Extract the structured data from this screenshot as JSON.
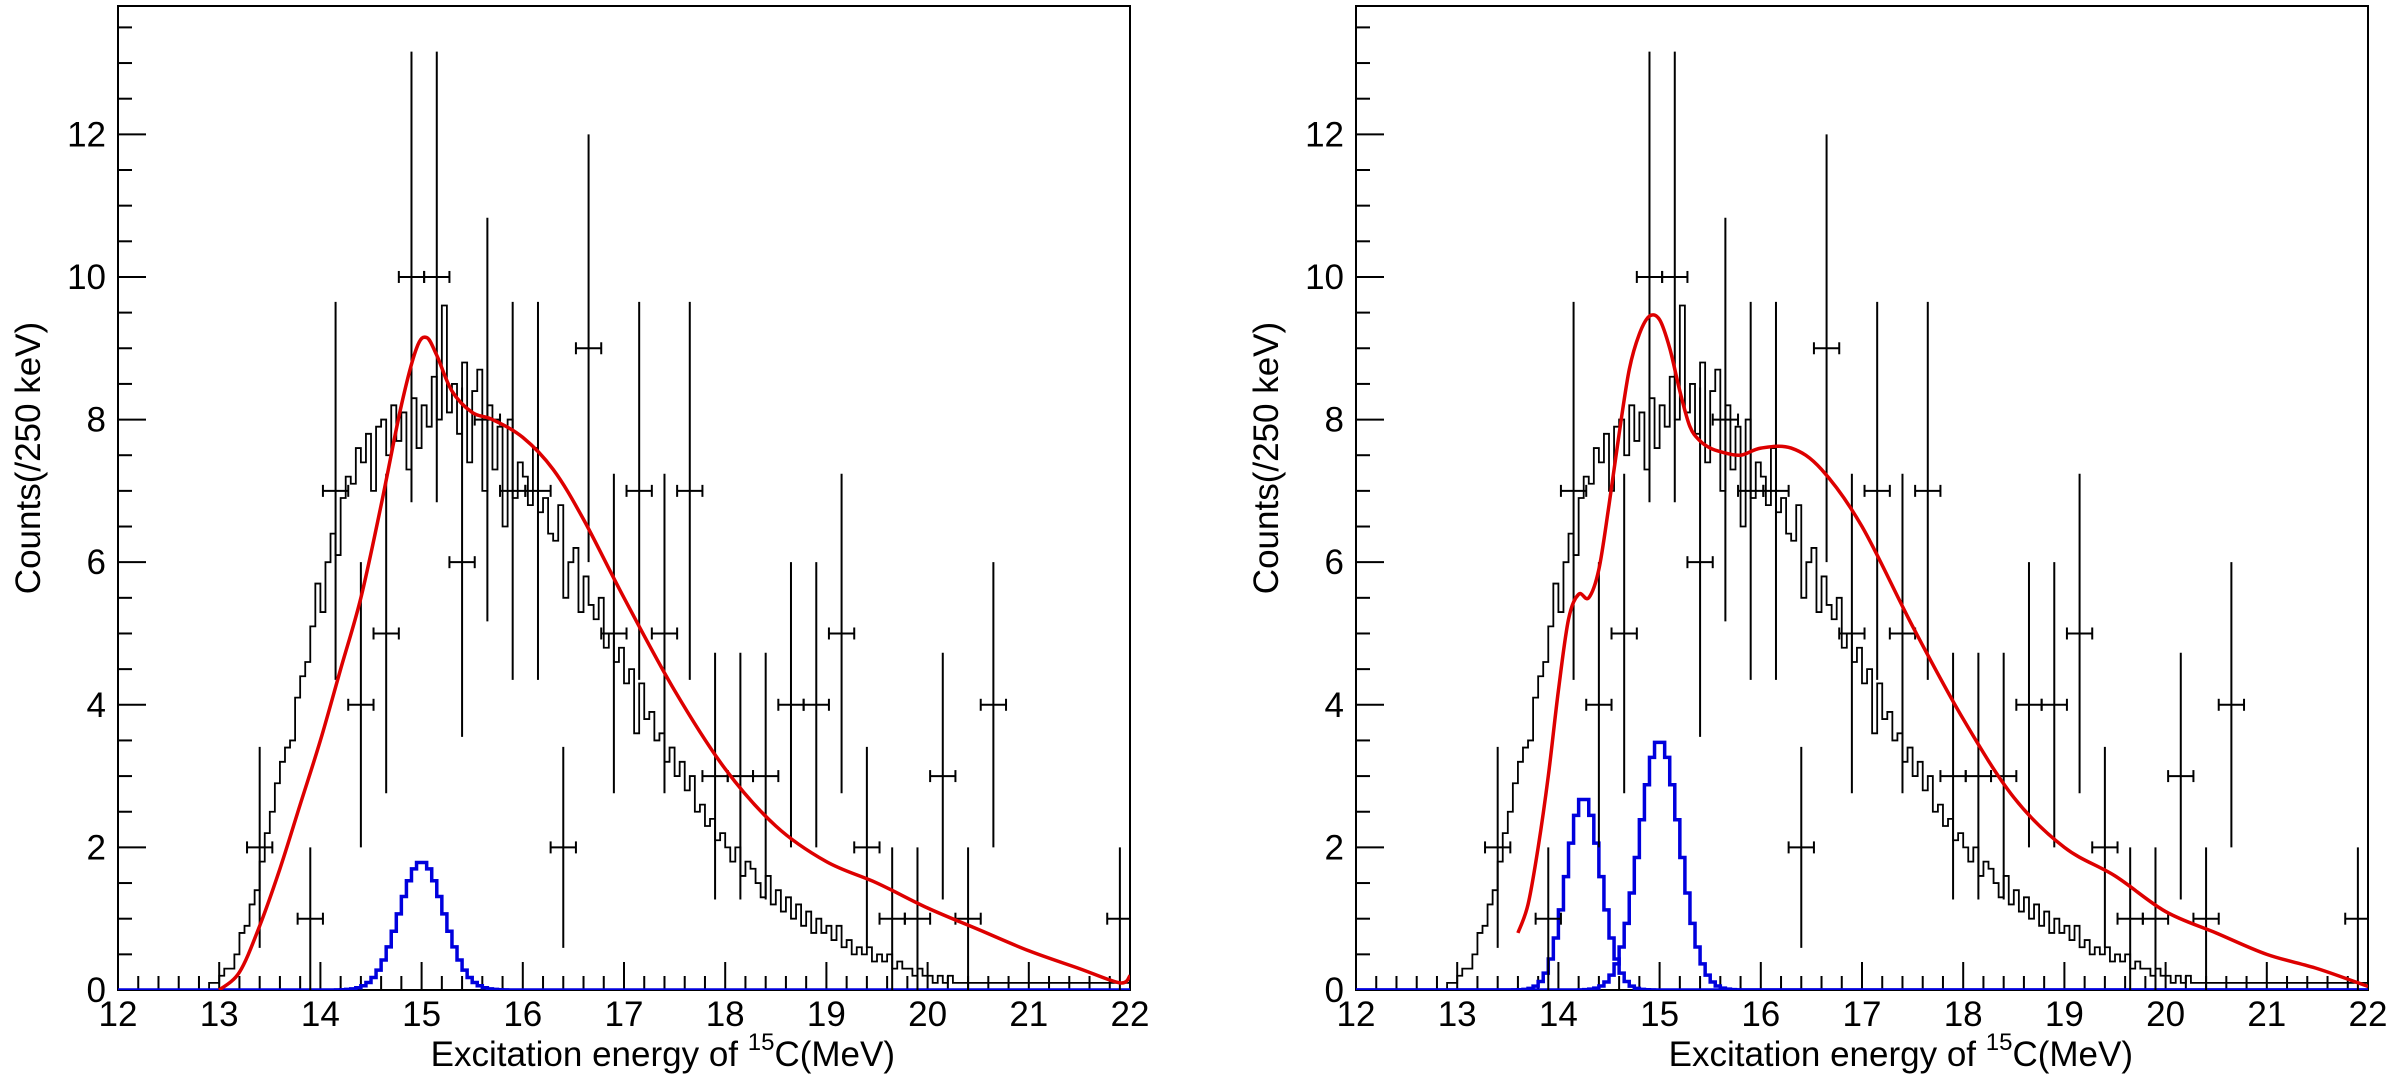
{
  "chart_data": [
    {
      "type": "histogram",
      "panel": "left",
      "xlabel_prefix": "Excitation energy of ",
      "xlabel_sup": "15",
      "xlabel_suffix": "C(MeV)",
      "ylabel": "Counts(/250 keV)",
      "xlim": [
        12,
        22
      ],
      "ylim": [
        0,
        13.8
      ],
      "xticks": [
        "12",
        "13",
        "14",
        "15",
        "16",
        "17",
        "18",
        "19",
        "20",
        "21",
        "22"
      ],
      "yticks": [
        "0",
        "2",
        "4",
        "6",
        "8",
        "10",
        "12"
      ],
      "colors": {
        "data": "#000000",
        "total_fit": "#dd0000",
        "component": "#0000dd"
      },
      "data_points": [
        {
          "x": 13.4,
          "y": 2,
          "err": 1.41
        },
        {
          "x": 13.9,
          "y": 1,
          "err": 1.0
        },
        {
          "x": 14.15,
          "y": 7,
          "err": 2.65
        },
        {
          "x": 14.4,
          "y": 4,
          "err": 2.0
        },
        {
          "x": 14.65,
          "y": 5,
          "err": 2.24
        },
        {
          "x": 14.9,
          "y": 10,
          "err": 3.16
        },
        {
          "x": 15.15,
          "y": 10,
          "err": 3.16
        },
        {
          "x": 15.4,
          "y": 6,
          "err": 2.45
        },
        {
          "x": 15.65,
          "y": 8,
          "err": 2.83
        },
        {
          "x": 15.9,
          "y": 7,
          "err": 2.65
        },
        {
          "x": 16.15,
          "y": 7,
          "err": 2.65
        },
        {
          "x": 16.4,
          "y": 2,
          "err": 1.41
        },
        {
          "x": 16.65,
          "y": 9,
          "err": 3.0
        },
        {
          "x": 16.9,
          "y": 5,
          "err": 2.24
        },
        {
          "x": 17.15,
          "y": 7,
          "err": 2.65
        },
        {
          "x": 17.4,
          "y": 5,
          "err": 2.24
        },
        {
          "x": 17.65,
          "y": 7,
          "err": 2.65
        },
        {
          "x": 17.9,
          "y": 3,
          "err": 1.73
        },
        {
          "x": 18.15,
          "y": 3,
          "err": 1.73
        },
        {
          "x": 18.4,
          "y": 3,
          "err": 1.73
        },
        {
          "x": 18.65,
          "y": 4,
          "err": 2.0
        },
        {
          "x": 18.9,
          "y": 4,
          "err": 2.0
        },
        {
          "x": 19.15,
          "y": 5,
          "err": 2.24
        },
        {
          "x": 19.4,
          "y": 2,
          "err": 1.41
        },
        {
          "x": 19.65,
          "y": 1,
          "err": 1.0
        },
        {
          "x": 19.9,
          "y": 1,
          "err": 1.0
        },
        {
          "x": 20.15,
          "y": 3,
          "err": 1.73
        },
        {
          "x": 20.4,
          "y": 1,
          "err": 1.0
        },
        {
          "x": 20.65,
          "y": 4,
          "err": 2.0
        },
        {
          "x": 21.9,
          "y": 1,
          "err": 1.0
        }
      ],
      "total_fit": {
        "x": [
          13.0,
          13.2,
          13.4,
          13.6,
          13.8,
          14.0,
          14.2,
          14.4,
          14.6,
          14.8,
          14.95,
          15.05,
          15.15,
          15.3,
          15.5,
          15.7,
          16.0,
          16.3,
          16.6,
          17.0,
          17.5,
          18.0,
          18.5,
          19.0,
          19.5,
          20.0,
          20.5,
          21.0,
          21.5,
          21.9,
          22.0
        ],
        "y": [
          0.0,
          0.25,
          0.9,
          1.7,
          2.6,
          3.5,
          4.5,
          5.5,
          6.8,
          8.2,
          9.0,
          9.15,
          8.9,
          8.4,
          8.1,
          8.0,
          7.75,
          7.3,
          6.6,
          5.5,
          4.2,
          3.1,
          2.3,
          1.8,
          1.5,
          1.15,
          0.85,
          0.55,
          0.3,
          0.1,
          0.2
        ]
      },
      "components": [
        {
          "center": 15.0,
          "amplitude": 1.8,
          "sigma": 0.22
        }
      ],
      "histogram": {
        "bin_start": 12.8,
        "bin_width": 0.05,
        "counts": [
          0,
          0,
          0.1,
          0.1,
          0.2,
          0.3,
          0.3,
          0.5,
          0.8,
          0.9,
          1.2,
          1.4,
          1.8,
          2.2,
          2.5,
          2.9,
          3.2,
          3.4,
          3.5,
          4.1,
          4.4,
          4.6,
          5.1,
          5.7,
          5.3,
          6.0,
          6.4,
          6.1,
          6.9,
          7.2,
          7.1,
          7.6,
          7.4,
          7.8,
          7.0,
          7.9,
          8.0,
          7.5,
          8.2,
          7.7,
          8.1,
          7.3,
          8.3,
          7.6,
          8.2,
          7.9,
          8.6,
          8.0,
          9.6,
          8.1,
          8.5,
          7.8,
          8.8,
          7.4,
          8.4,
          8.7,
          7.0,
          8.2,
          7.3,
          7.9,
          6.5,
          8.0,
          6.9,
          7.4,
          7.2,
          6.8,
          7.6,
          6.7,
          6.9,
          6.4,
          6.3,
          6.8,
          5.5,
          6.0,
          6.2,
          5.3,
          5.8,
          5.4,
          5.2,
          5.5,
          4.8,
          5.0,
          4.6,
          4.8,
          4.3,
          4.5,
          3.6,
          4.3,
          3.8,
          3.9,
          3.5,
          3.6,
          3.2,
          3.4,
          3.0,
          3.2,
          2.8,
          3.0,
          2.5,
          2.6,
          2.3,
          2.4,
          2.1,
          2.2,
          2.0,
          1.8,
          2.0,
          1.6,
          1.8,
          1.7,
          1.5,
          1.3,
          1.6,
          1.2,
          1.4,
          1.1,
          1.3,
          1.0,
          1.2,
          0.9,
          1.1,
          0.8,
          1.0,
          0.8,
          0.9,
          0.7,
          0.9,
          0.6,
          0.7,
          0.5,
          0.6,
          0.5,
          0.6,
          0.4,
          0.5,
          0.4,
          0.5,
          0.3,
          0.4,
          0.3,
          0.3,
          0.2,
          0.3,
          0.2,
          0.2,
          0.1,
          0.2,
          0.1,
          0.2,
          0.1,
          0.1,
          0.1,
          0.1,
          0.1,
          0.1,
          0.1,
          0.1,
          0.1,
          0.1,
          0.1,
          0.1,
          0.1,
          0.1,
          0.1,
          0.1,
          0.1,
          0.1,
          0.1,
          0.1,
          0.1,
          0.1,
          0.1,
          0.1,
          0.1,
          0.1,
          0.1,
          0.1,
          0.1,
          0.1,
          0.1,
          0.1,
          0.1,
          0.1,
          0.1,
          0.1
        ]
      }
    },
    {
      "type": "histogram",
      "panel": "right",
      "xlabel_prefix": "Excitation energy of ",
      "xlabel_sup": "15",
      "xlabel_suffix": "C(MeV)",
      "ylabel": "Counts(/250 keV)",
      "xlim": [
        12,
        22
      ],
      "ylim": [
        0,
        13.8
      ],
      "xticks": [
        "12",
        "13",
        "14",
        "15",
        "16",
        "17",
        "18",
        "19",
        "20",
        "21",
        "22"
      ],
      "yticks": [
        "0",
        "2",
        "4",
        "6",
        "8",
        "10",
        "12"
      ],
      "colors": {
        "data": "#000000",
        "total_fit": "#dd0000",
        "component": "#0000dd"
      },
      "data_points": [
        {
          "x": 13.4,
          "y": 2,
          "err": 1.41
        },
        {
          "x": 13.9,
          "y": 1,
          "err": 1.0
        },
        {
          "x": 14.15,
          "y": 7,
          "err": 2.65
        },
        {
          "x": 14.4,
          "y": 4,
          "err": 2.0
        },
        {
          "x": 14.65,
          "y": 5,
          "err": 2.24
        },
        {
          "x": 14.9,
          "y": 10,
          "err": 3.16
        },
        {
          "x": 15.15,
          "y": 10,
          "err": 3.16
        },
        {
          "x": 15.4,
          "y": 6,
          "err": 2.45
        },
        {
          "x": 15.65,
          "y": 8,
          "err": 2.83
        },
        {
          "x": 15.9,
          "y": 7,
          "err": 2.65
        },
        {
          "x": 16.15,
          "y": 7,
          "err": 2.65
        },
        {
          "x": 16.4,
          "y": 2,
          "err": 1.41
        },
        {
          "x": 16.65,
          "y": 9,
          "err": 3.0
        },
        {
          "x": 16.9,
          "y": 5,
          "err": 2.24
        },
        {
          "x": 17.15,
          "y": 7,
          "err": 2.65
        },
        {
          "x": 17.4,
          "y": 5,
          "err": 2.24
        },
        {
          "x": 17.65,
          "y": 7,
          "err": 2.65
        },
        {
          "x": 17.9,
          "y": 3,
          "err": 1.73
        },
        {
          "x": 18.15,
          "y": 3,
          "err": 1.73
        },
        {
          "x": 18.4,
          "y": 3,
          "err": 1.73
        },
        {
          "x": 18.65,
          "y": 4,
          "err": 2.0
        },
        {
          "x": 18.9,
          "y": 4,
          "err": 2.0
        },
        {
          "x": 19.15,
          "y": 5,
          "err": 2.24
        },
        {
          "x": 19.4,
          "y": 2,
          "err": 1.41
        },
        {
          "x": 19.65,
          "y": 1,
          "err": 1.0
        },
        {
          "x": 19.9,
          "y": 1,
          "err": 1.0
        },
        {
          "x": 20.15,
          "y": 3,
          "err": 1.73
        },
        {
          "x": 20.4,
          "y": 1,
          "err": 1.0
        },
        {
          "x": 20.65,
          "y": 4,
          "err": 2.0
        },
        {
          "x": 21.9,
          "y": 1,
          "err": 1.0
        }
      ],
      "total_fit": {
        "x": [
          13.6,
          13.7,
          13.8,
          13.9,
          14.0,
          14.1,
          14.2,
          14.3,
          14.4,
          14.5,
          14.6,
          14.7,
          14.8,
          14.9,
          15.0,
          15.1,
          15.2,
          15.3,
          15.4,
          15.5,
          15.6,
          15.8,
          16.0,
          16.3,
          16.6,
          17.0,
          17.5,
          18.0,
          18.5,
          19.0,
          19.5,
          20.0,
          20.5,
          21.0,
          21.5,
          22.0
        ],
        "y": [
          0.8,
          1.2,
          2.0,
          3.0,
          4.2,
          5.2,
          5.55,
          5.5,
          5.9,
          6.8,
          7.8,
          8.7,
          9.2,
          9.45,
          9.4,
          9.0,
          8.4,
          7.9,
          7.7,
          7.6,
          7.55,
          7.5,
          7.6,
          7.6,
          7.3,
          6.5,
          5.1,
          3.8,
          2.7,
          2.0,
          1.6,
          1.1,
          0.8,
          0.5,
          0.3,
          0.05
        ]
      },
      "components": [
        {
          "center": 14.25,
          "amplitude": 2.7,
          "sigma": 0.17
        },
        {
          "center": 15.0,
          "amplitude": 3.5,
          "sigma": 0.2
        }
      ],
      "histogram": {
        "bin_start": 12.8,
        "bin_width": 0.05,
        "counts": [
          0,
          0,
          0.1,
          0.1,
          0.2,
          0.3,
          0.3,
          0.5,
          0.8,
          0.9,
          1.2,
          1.4,
          1.8,
          2.2,
          2.5,
          2.9,
          3.2,
          3.4,
          3.5,
          4.1,
          4.4,
          4.6,
          5.1,
          5.7,
          5.3,
          6.0,
          6.4,
          6.1,
          6.9,
          7.2,
          7.1,
          7.6,
          7.4,
          7.8,
          7.0,
          7.9,
          8.0,
          7.5,
          8.2,
          7.7,
          8.1,
          7.3,
          8.3,
          7.6,
          8.2,
          7.9,
          8.6,
          8.0,
          9.6,
          8.1,
          8.5,
          7.8,
          8.8,
          7.4,
          8.4,
          8.7,
          7.0,
          8.2,
          7.3,
          7.9,
          6.5,
          8.0,
          6.9,
          7.4,
          7.2,
          6.8,
          7.6,
          6.7,
          6.9,
          6.4,
          6.3,
          6.8,
          5.5,
          6.0,
          6.2,
          5.3,
          5.8,
          5.4,
          5.2,
          5.5,
          4.8,
          5.0,
          4.6,
          4.8,
          4.3,
          4.5,
          3.6,
          4.3,
          3.8,
          3.9,
          3.5,
          3.6,
          3.2,
          3.4,
          3.0,
          3.2,
          2.8,
          3.0,
          2.5,
          2.6,
          2.3,
          2.4,
          2.1,
          2.2,
          2.0,
          1.8,
          2.0,
          1.6,
          1.8,
          1.7,
          1.5,
          1.3,
          1.6,
          1.2,
          1.4,
          1.1,
          1.3,
          1.0,
          1.2,
          0.9,
          1.1,
          0.8,
          1.0,
          0.8,
          0.9,
          0.7,
          0.9,
          0.6,
          0.7,
          0.5,
          0.6,
          0.5,
          0.6,
          0.4,
          0.5,
          0.4,
          0.5,
          0.3,
          0.4,
          0.3,
          0.3,
          0.2,
          0.3,
          0.2,
          0.2,
          0.1,
          0.2,
          0.1,
          0.2,
          0.1,
          0.1,
          0.1,
          0.1,
          0.1,
          0.1,
          0.1,
          0.1,
          0.1,
          0.1,
          0.1,
          0.1,
          0.1,
          0.1,
          0.1,
          0.1,
          0.1,
          0.1,
          0.1,
          0.1,
          0.1,
          0.1,
          0.1,
          0.1,
          0.1,
          0.1,
          0.1,
          0.1,
          0.1,
          0.1,
          0.1,
          0.1,
          0.1,
          0.1,
          0.1,
          0.1,
          0.1
        ]
      }
    }
  ]
}
